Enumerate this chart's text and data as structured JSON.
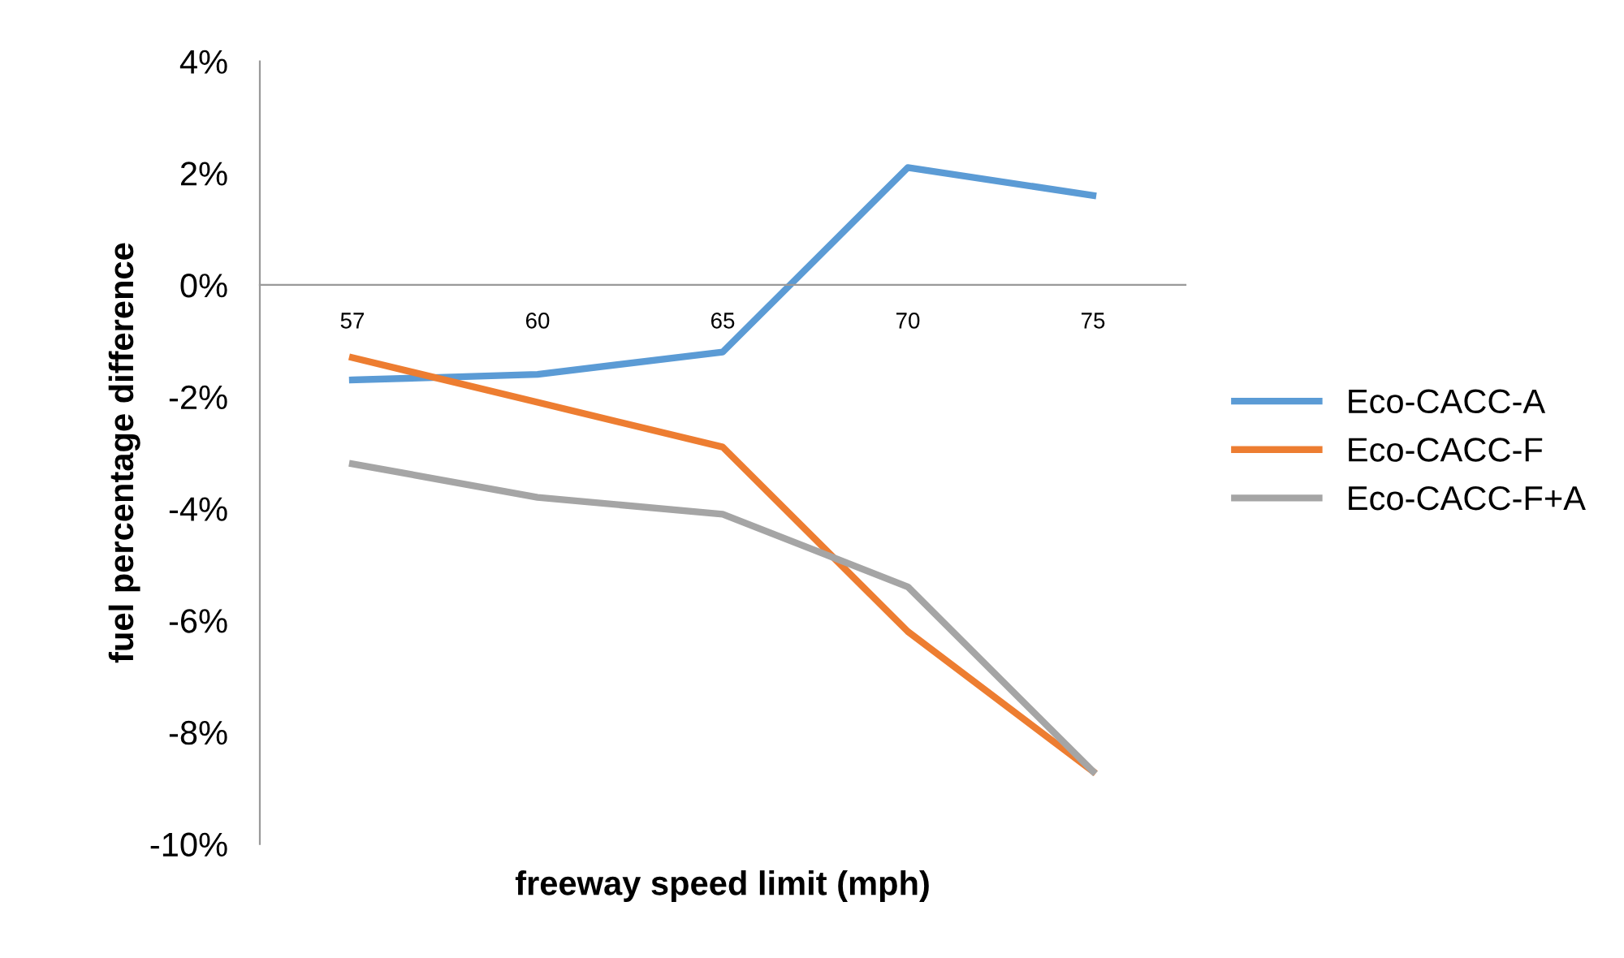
{
  "chart_data": {
    "type": "line",
    "xlabel": "freeway speed limit (mph)",
    "ylabel": "fuel percentage difference",
    "categories": [
      "57",
      "60",
      "65",
      "70",
      "75"
    ],
    "series": [
      {
        "name": "Eco-CACC-A",
        "color": "#5b9bd5",
        "values": [
          -1.7,
          -1.6,
          -1.2,
          2.1,
          1.6
        ]
      },
      {
        "name": "Eco-CACC-F",
        "color": "#ed7d31",
        "values": [
          -1.3,
          -2.1,
          -2.9,
          -6.2,
          -8.7
        ]
      },
      {
        "name": "Eco-CACC-F+A",
        "color": "#a5a5a5",
        "values": [
          -3.2,
          -3.8,
          -4.1,
          -5.4,
          -8.7
        ]
      }
    ],
    "ylim": [
      -10,
      4
    ],
    "yticks": [
      {
        "value": -10,
        "label": "-10%"
      },
      {
        "value": -8,
        "label": "-8%"
      },
      {
        "value": -6,
        "label": "-6%"
      },
      {
        "value": -4,
        "label": "-4%"
      },
      {
        "value": -2,
        "label": "-2%"
      },
      {
        "value": 0,
        "label": "0%"
      },
      {
        "value": 2,
        "label": "2%"
      },
      {
        "value": 4,
        "label": "4%"
      }
    ],
    "legend": "right",
    "grid": false,
    "marker": "none",
    "line_style": "solid"
  }
}
